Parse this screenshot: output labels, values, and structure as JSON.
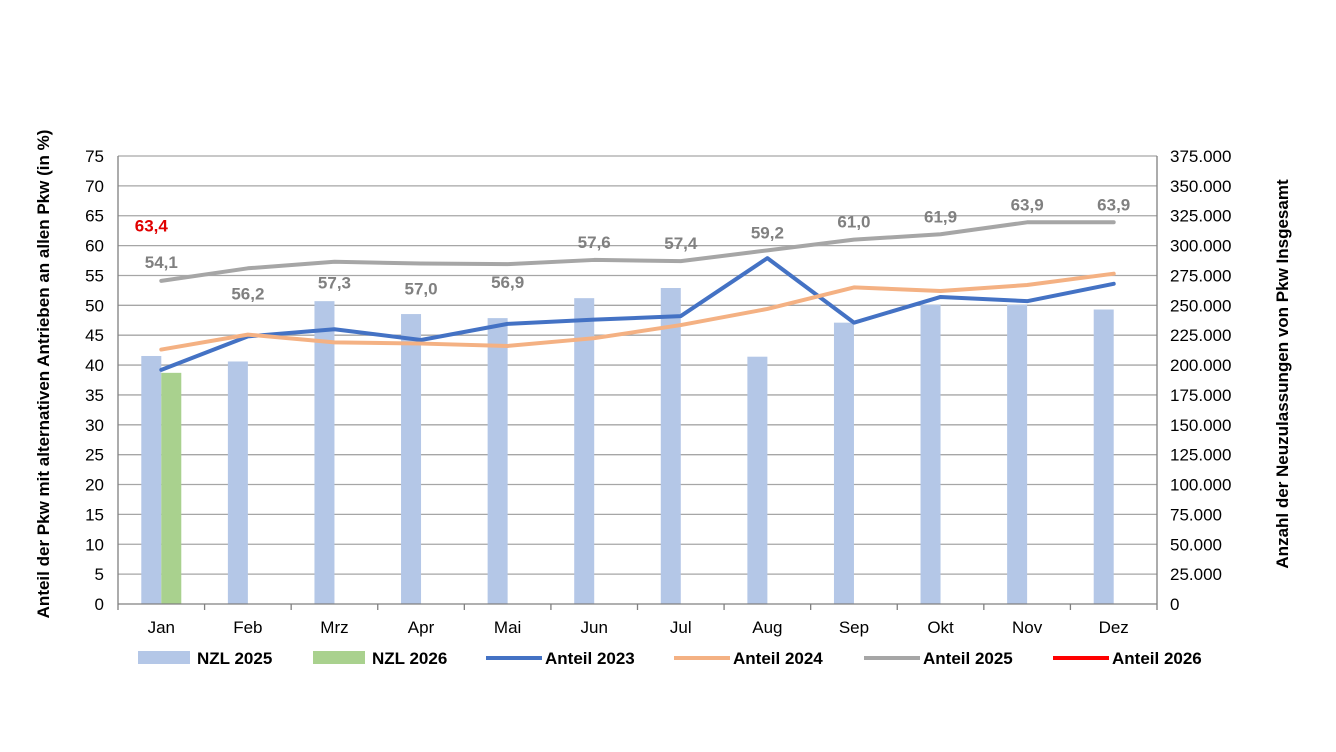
{
  "chart_data": {
    "type": "bar+line",
    "categories": [
      "Jan",
      "Feb",
      "Mrz",
      "Apr",
      "Mai",
      "Jun",
      "Jul",
      "Aug",
      "Sep",
      "Okt",
      "Nov",
      "Dez"
    ],
    "y_left": {
      "label": "Anteil der Pkw mit alternativen Antrieben an allen Pkw (in %)",
      "min": 0,
      "max": 75,
      "step": 5,
      "ticks": [
        "0",
        "5",
        "10",
        "15",
        "20",
        "25",
        "30",
        "35",
        "40",
        "45",
        "50",
        "55",
        "60",
        "65",
        "70",
        "75"
      ]
    },
    "y_right": {
      "label": "Anzahl der Neuzulassungen von Pkw Insgesamt",
      "min": 0,
      "max": 375000,
      "step": 25000,
      "ticks": [
        "0",
        "25.000",
        "50.000",
        "75.000",
        "100.000",
        "125.000",
        "150.000",
        "175.000",
        "200.000",
        "225.000",
        "250.000",
        "275.000",
        "300.000",
        "325.000",
        "350.000",
        "375.000"
      ]
    },
    "bars": [
      {
        "name": "NZL 2025",
        "color": "#b4c7e7",
        "axis": "right",
        "values": [
          207600,
          203000,
          253500,
          242700,
          239300,
          256000,
          264500,
          207000,
          235500,
          250500,
          250500,
          246500
        ]
      },
      {
        "name": "NZL 2026",
        "color": "#a9d18e",
        "axis": "right",
        "values": [
          193500,
          null,
          null,
          null,
          null,
          null,
          null,
          null,
          null,
          null,
          null,
          null
        ]
      }
    ],
    "lines": [
      {
        "name": "Anteil 2023",
        "color": "#4472c4",
        "axis": "left",
        "values": [
          39.2,
          44.8,
          46.0,
          44.2,
          46.9,
          47.6,
          48.2,
          57.9,
          47.1,
          51.4,
          50.7,
          53.6
        ]
      },
      {
        "name": "Anteil 2024",
        "color": "#f4b183",
        "axis": "left",
        "values": [
          42.6,
          45.1,
          43.8,
          43.6,
          43.2,
          44.5,
          46.7,
          49.4,
          53.0,
          52.4,
          53.4,
          55.3
        ]
      },
      {
        "name": "Anteil 2025",
        "color": "#a6a6a6",
        "axis": "left",
        "values": [
          54.1,
          56.2,
          57.3,
          57.0,
          56.9,
          57.6,
          57.4,
          59.2,
          61.0,
          61.9,
          63.9,
          63.9
        ],
        "labels": [
          "54,1",
          "56,2",
          "57,3",
          "57,0",
          "56,9",
          "57,6",
          "57,4",
          "59,2",
          "61,0",
          "61,9",
          "63,9",
          "63,9"
        ],
        "label_color": "#808080"
      },
      {
        "name": "Anteil 2026",
        "color": "#ff0000",
        "axis": "left",
        "values": [
          63.4,
          null,
          null,
          null,
          null,
          null,
          null,
          null,
          null,
          null,
          null,
          null
        ],
        "labels": [
          "63,4"
        ],
        "label_color": "#e00000"
      }
    ],
    "legend": [
      "NZL 2025",
      "NZL 2026",
      "Anteil 2023",
      "Anteil 2024",
      "Anteil 2025",
      "Anteil 2026"
    ],
    "legend_position": "bottom",
    "grid": true
  }
}
